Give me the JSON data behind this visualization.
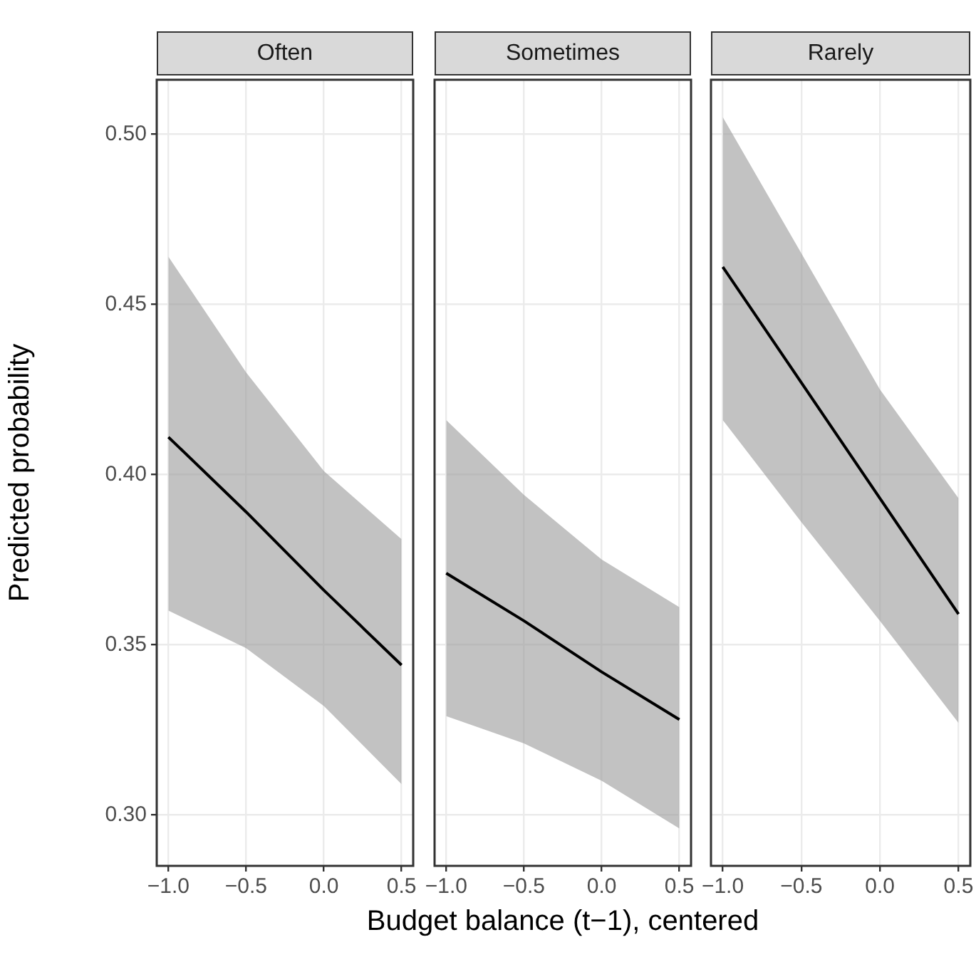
{
  "chart_data": [
    {
      "type": "line",
      "title": "Often",
      "ylabel": "Predicted probability",
      "x": [
        -1,
        -0.5,
        0,
        0.5
      ],
      "series": [
        {
          "color": "#000000",
          "values": [
            0.411,
            0.389,
            0.366,
            0.344
          ],
          "lower": [
            0.36,
            0.349,
            0.332,
            0.309
          ],
          "upper": [
            0.464,
            0.43,
            0.401,
            0.381
          ]
        }
      ],
      "xlim": [
        -1.075,
        0.575
      ],
      "ylim": [
        0.285,
        0.516
      ],
      "xticks": [
        {
          "value": -1,
          "label": "−1.0"
        },
        {
          "value": -0.5,
          "label": "−0.5"
        },
        {
          "value": 0,
          "label": "0.0"
        },
        {
          "value": 0.5,
          "label": "0.5"
        }
      ],
      "yticks": [
        {
          "value": 0.3,
          "label": "0.30"
        },
        {
          "value": 0.35,
          "label": "0.35"
        },
        {
          "value": 0.4,
          "label": "0.40"
        },
        {
          "value": 0.45,
          "label": "0.45"
        },
        {
          "value": 0.5,
          "label": "0.50"
        }
      ],
      "grid": true
    },
    {
      "type": "line",
      "title": "Sometimes",
      "xlabel": "Budget balance (t−1), centered",
      "x": [
        -1,
        -0.5,
        0,
        0.5
      ],
      "series": [
        {
          "color": "#000000",
          "values": [
            0.371,
            0.357,
            0.342,
            0.328
          ],
          "lower": [
            0.329,
            0.321,
            0.31,
            0.296
          ],
          "upper": [
            0.416,
            0.394,
            0.375,
            0.361
          ]
        }
      ],
      "xlim": [
        -1.075,
        0.575
      ],
      "ylim": [
        0.285,
        0.516
      ],
      "xticks": [
        {
          "value": -1,
          "label": "−1.0"
        },
        {
          "value": -0.5,
          "label": "−0.5"
        },
        {
          "value": 0,
          "label": "0.0"
        },
        {
          "value": 0.5,
          "label": "0.5"
        }
      ],
      "yticks": [
        0.3,
        0.35,
        0.4,
        0.45,
        0.5
      ],
      "grid": true,
      "tick_labels": "x"
    },
    {
      "type": "line",
      "title": "Rarely",
      "x": [
        -1,
        -0.5,
        0,
        0.5
      ],
      "series": [
        {
          "color": "#000000",
          "values": [
            0.461,
            0.427,
            0.393,
            0.359
          ],
          "lower": [
            0.416,
            0.386,
            0.357,
            0.327
          ],
          "upper": [
            0.505,
            0.465,
            0.425,
            0.393
          ]
        }
      ],
      "xlim": [
        -1.075,
        0.575
      ],
      "ylim": [
        0.285,
        0.516
      ],
      "xticks": [
        {
          "value": -1,
          "label": "−1.0"
        },
        {
          "value": -0.5,
          "label": "−0.5"
        },
        {
          "value": 0,
          "label": "0.0"
        },
        {
          "value": 0.5,
          "label": "0.5"
        }
      ],
      "yticks": [
        0.3,
        0.35,
        0.4,
        0.45,
        0.5
      ],
      "grid": true,
      "tick_labels": "x"
    }
  ]
}
